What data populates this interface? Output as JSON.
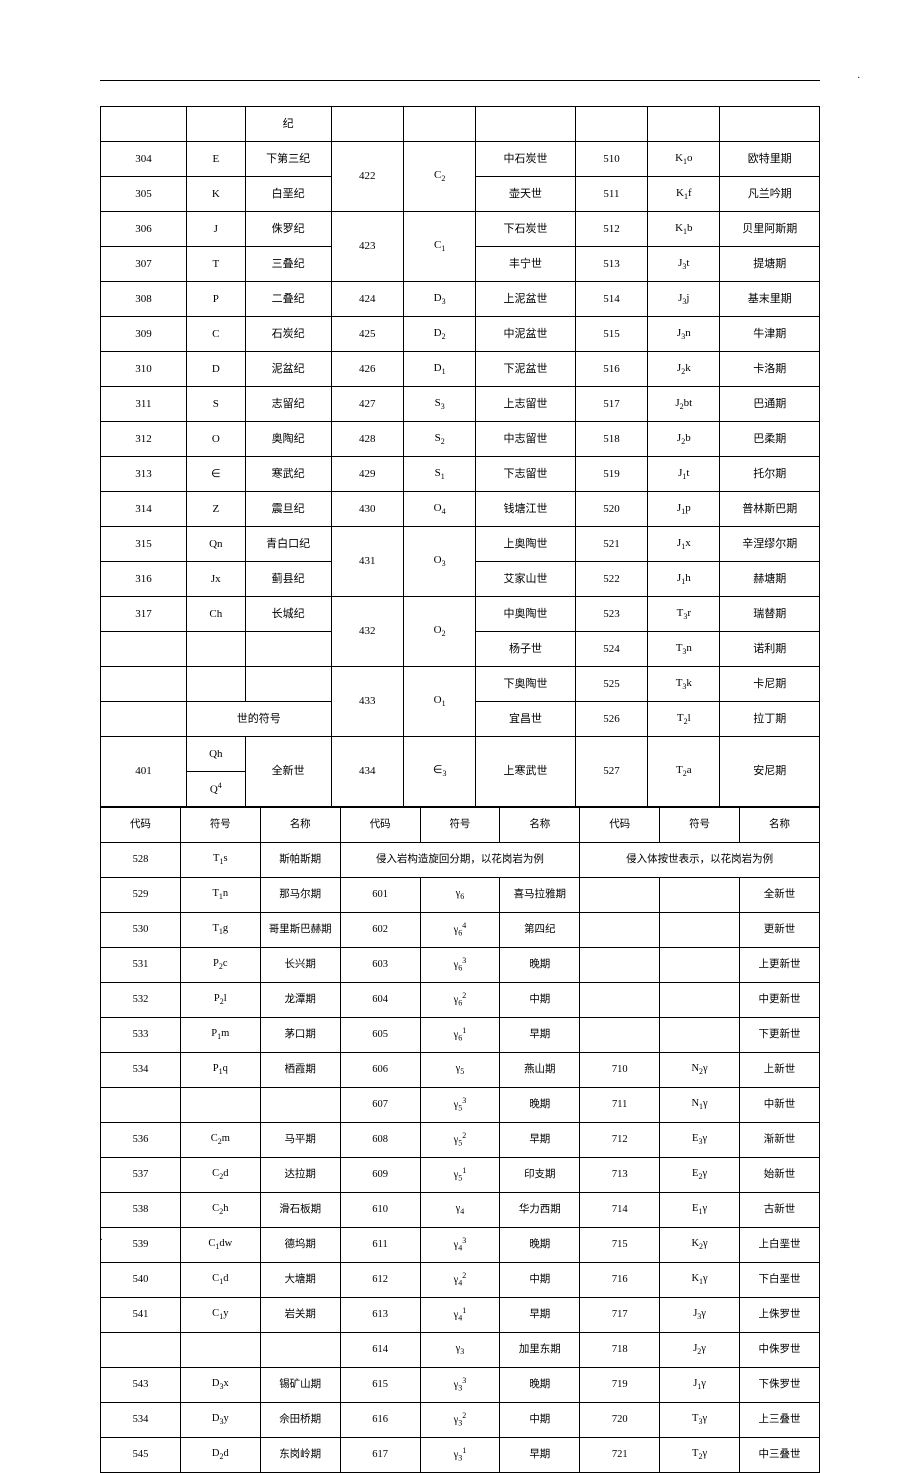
{
  "t1": [
    [
      "",
      "",
      "纪",
      "",
      "",
      "",
      "",
      "",
      ""
    ],
    [
      "304",
      "E",
      "下第三纪",
      "422",
      "C₂",
      "中石炭世",
      "510",
      "K₁o",
      "欧特里期"
    ],
    [
      "305",
      "K",
      "白垩纪",
      "",
      "",
      "壶天世",
      "511",
      "K₁f",
      "凡兰吟期"
    ],
    [
      "306",
      "J",
      "侏罗纪",
      "423",
      "C₁",
      "下石炭世",
      "512",
      "K₁b",
      "贝里阿斯期"
    ],
    [
      "307",
      "T",
      "三叠纪",
      "",
      "",
      "丰宁世",
      "513",
      "J₃t",
      "提塘期"
    ],
    [
      "308",
      "P",
      "二叠纪",
      "424",
      "D₃",
      "上泥盆世",
      "514",
      "J₃j",
      "基末里期"
    ],
    [
      "309",
      "C",
      "石炭纪",
      "425",
      "D₂",
      "中泥盆世",
      "515",
      "J₃n",
      "牛津期"
    ],
    [
      "310",
      "D",
      "泥盆纪",
      "426",
      "D₁",
      "下泥盆世",
      "516",
      "J₂k",
      "卡洛期"
    ],
    [
      "311",
      "S",
      "志留纪",
      "427",
      "S₃",
      "上志留世",
      "517",
      "J₂bt",
      "巴通期"
    ],
    [
      "312",
      "O",
      "奥陶纪",
      "428",
      "S₂",
      "中志留世",
      "518",
      "J₂b",
      "巴柔期"
    ],
    [
      "313",
      "∈",
      "寒武纪",
      "429",
      "S₁",
      "下志留世",
      "519",
      "J₁t",
      "托尔期"
    ],
    [
      "314",
      "Z",
      "震旦纪",
      "430",
      "O₄",
      "钱塘江世",
      "520",
      "J₁p",
      "普林斯巴期"
    ],
    [
      "315",
      "Qn",
      "青白口纪",
      "431",
      "O₃",
      "上奥陶世",
      "521",
      "J₁x",
      "辛涅缪尔期"
    ],
    [
      "316",
      "Jx",
      "蓟县纪",
      "",
      "",
      "艾家山世",
      "522",
      "J₁h",
      "赫塘期"
    ],
    [
      "317",
      "Ch",
      "长城纪",
      "432",
      "O₂",
      "中奥陶世",
      "523",
      "T₃r",
      "瑞替期"
    ],
    [
      "",
      "",
      "",
      "",
      "",
      "杨子世",
      "524",
      "T₃n",
      "诺利期"
    ],
    [
      "",
      "",
      "",
      "433",
      "O₁",
      "下奥陶世",
      "525",
      "T₃k",
      "卡尼期"
    ],
    [
      "",
      "",
      "世的符号",
      "",
      "",
      "宜昌世",
      "526",
      "T₂l",
      "拉丁期"
    ],
    [
      "401",
      "Qh",
      "全新世",
      "434",
      "∈₃",
      "上寒武世",
      "527",
      "T₂a",
      "安尼期"
    ],
    [
      "",
      "Q⁴",
      "",
      "",
      "",
      "",
      "",
      "",
      ""
    ]
  ],
  "hdr": [
    "代码",
    "符号",
    "名称",
    "代码",
    "符号",
    "名称",
    "代码",
    "符号",
    "名称"
  ],
  "t2": [
    [
      "528",
      "T₁s",
      "斯帕斯期",
      "侵入岩构造旋回分期，以花岗岩为例",
      "",
      "",
      "侵入体按世表示，以花岗岩为例",
      "",
      ""
    ],
    [
      "529",
      "T₁n",
      "那马尔期",
      "601",
      "γ₆",
      "喜马拉雅期",
      "",
      "",
      "全新世"
    ],
    [
      "530",
      "T₁g",
      "哥里斯巴赫期",
      "602",
      "γ₆⁴",
      "第四纪",
      "",
      "",
      "更新世"
    ],
    [
      "531",
      "P₂c",
      "长兴期",
      "603",
      "γ₆³",
      "晚期",
      "",
      "",
      "上更新世"
    ],
    [
      "532",
      "P₂l",
      "龙潭期",
      "604",
      "γ₆²",
      "中期",
      "",
      "",
      "中更新世"
    ],
    [
      "533",
      "P₁m",
      "茅口期",
      "605",
      "γ₆¹",
      "早期",
      "",
      "",
      "下更新世"
    ],
    [
      "534",
      "P₁q",
      "栖霞期",
      "606",
      "γ₅",
      "燕山期",
      "710",
      "N₂γ",
      "上新世"
    ],
    [
      "",
      "",
      "",
      "607",
      "γ₅³",
      "晚期",
      "711",
      "N₁γ",
      "中新世"
    ],
    [
      "536",
      "C₂m",
      "马平期",
      "608",
      "γ₅²",
      "早期",
      "712",
      "E₃γ",
      "渐新世"
    ],
    [
      "537",
      "C₂d",
      "达拉期",
      "609",
      "γ₅¹",
      "印支期",
      "713",
      "E₂γ",
      "始新世"
    ],
    [
      "538",
      "C₂h",
      "滑石板期",
      "610",
      "γ₄",
      "华力西期",
      "714",
      "E₁γ",
      "古新世"
    ],
    [
      "539",
      "C₁dw",
      "德坞期",
      "611",
      "γ₄³",
      "晚期",
      "715",
      "K₂γ",
      "上白垩世"
    ],
    [
      "540",
      "C₁d",
      "大塘期",
      "612",
      "γ₄²",
      "中期",
      "716",
      "K₁γ",
      "下白垩世"
    ],
    [
      "541",
      "C₁y",
      "岩关期",
      "613",
      "γ₄¹",
      "早期",
      "717",
      "J₃γ",
      "上侏罗世"
    ],
    [
      "",
      "",
      "",
      "614",
      "γ₃",
      "加里东期",
      "718",
      "J₂γ",
      "中侏罗世"
    ],
    [
      "543",
      "D₃x",
      "锡矿山期",
      "615",
      "γ₃³",
      "晚期",
      "719",
      "J₁γ",
      "下侏罗世"
    ],
    [
      "534",
      "D₃y",
      "佘田桥期",
      "616",
      "γ₃²",
      "中期",
      "720",
      "T₃γ",
      "上三叠世"
    ],
    [
      "545",
      "D₂d",
      "东岗岭期",
      "617",
      "γ₃¹",
      "早期",
      "721",
      "T₂γ",
      "中三叠世"
    ]
  ],
  "merges_t1": [
    {
      "r": 1,
      "c": 3,
      "rs": 2
    },
    {
      "r": 1,
      "c": 4,
      "rs": 2
    },
    {
      "r": 3,
      "c": 3,
      "rs": 2
    },
    {
      "r": 3,
      "c": 4,
      "rs": 2
    },
    {
      "r": 12,
      "c": 3,
      "rs": 1
    },
    {
      "r": 12,
      "c": 4,
      "rs": 1
    },
    {
      "r": 14,
      "c": 3,
      "rs": 2
    },
    {
      "r": 14,
      "c": 4,
      "rs": 2
    },
    {
      "r": 16,
      "c": 3,
      "rs": 2
    },
    {
      "r": 16,
      "c": 4,
      "rs": 2
    },
    {
      "r": 17,
      "c": 0,
      "cs": 2,
      "rs": 1,
      "v": ""
    },
    {
      "r": 17,
      "c": 2,
      "cs": 1,
      "rs": 1,
      "v": "世的符号"
    },
    {
      "r": 18,
      "c": 0,
      "rs": 2
    },
    {
      "r": 18,
      "c": 2,
      "rs": 2
    },
    {
      "r": 18,
      "c": 3,
      "rs": 2
    },
    {
      "r": 18,
      "c": 4,
      "rs": 2
    },
    {
      "r": 18,
      "c": 5,
      "rs": 2
    },
    {
      "r": 18,
      "c": 6,
      "rs": 2
    },
    {
      "r": 18,
      "c": 7,
      "rs": 2
    },
    {
      "r": 18,
      "c": 8,
      "rs": 2
    }
  ]
}
